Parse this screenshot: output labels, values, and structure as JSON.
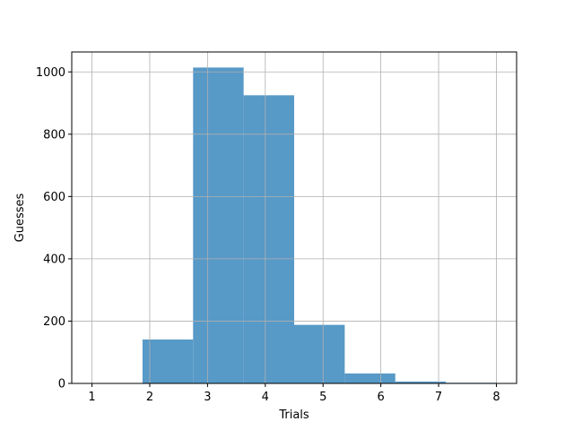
{
  "chart_data": {
    "type": "bar",
    "title": "",
    "xlabel": "Trials",
    "ylabel": "Guesses",
    "bins": [
      {
        "x0": 1.0,
        "x1": 1.875,
        "value": 0
      },
      {
        "x0": 1.875,
        "x1": 2.75,
        "value": 141
      },
      {
        "x0": 2.75,
        "x1": 3.625,
        "value": 1014
      },
      {
        "x0": 3.625,
        "x1": 4.5,
        "value": 925
      },
      {
        "x0": 4.5,
        "x1": 5.375,
        "value": 188
      },
      {
        "x0": 5.375,
        "x1": 6.25,
        "value": 32
      },
      {
        "x0": 6.25,
        "x1": 7.125,
        "value": 6
      },
      {
        "x0": 7.125,
        "x1": 8.0,
        "value": 2
      }
    ],
    "xlim": [
      0.65,
      8.35
    ],
    "ylim": [
      0,
      1064
    ],
    "xticks": [
      1,
      2,
      3,
      4,
      5,
      6,
      7,
      8
    ],
    "yticks": [
      0,
      200,
      400,
      600,
      800,
      1000
    ],
    "grid": true,
    "bar_color": "#5799c7",
    "grid_color": "#b0b0b0"
  }
}
